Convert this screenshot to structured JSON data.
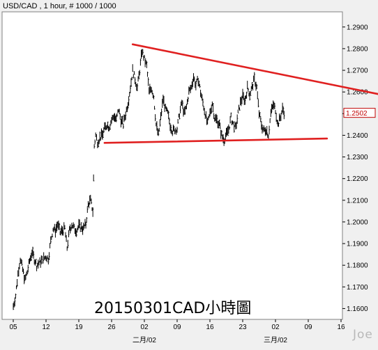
{
  "header": {
    "title": "USD/CAD , 1 hour, # 1000 / 1000"
  },
  "annotation": "20150301CAD小時圖",
  "watermark": "Joe",
  "colors": {
    "background": "#f0f0f0",
    "plot": "#ffffff",
    "price": "#000000",
    "trendline": "#e02020",
    "last_price_border": "#c00000"
  },
  "chart_data": {
    "type": "line",
    "style": "hlc-bars",
    "symbol": "USD/CAD",
    "timeframe": "1 hour",
    "yrange": [
      1.155,
      1.297
    ],
    "xrange_days": [
      -3,
      47
    ],
    "y_ticks": [
      "1.2900",
      "1.2800",
      "1.2700",
      "1.2600",
      "1.2500",
      "1.2400",
      "1.2300",
      "1.2200",
      "1.2100",
      "1.2000",
      "1.1900",
      "1.1800",
      "1.1700",
      "1.1600"
    ],
    "y_tick_values": [
      1.29,
      1.28,
      1.27,
      1.26,
      1.25,
      1.24,
      1.23,
      1.22,
      1.21,
      1.2,
      1.19,
      1.18,
      1.17,
      1.16
    ],
    "x_ticks": [
      {
        "label": "05",
        "day": 0
      },
      {
        "label": "12",
        "day": 7
      },
      {
        "label": "19",
        "day": 14
      },
      {
        "label": "26",
        "day": 21
      },
      {
        "label": "02",
        "day": 28
      },
      {
        "label": "09",
        "day": 35
      },
      {
        "label": "16",
        "day": 42
      },
      {
        "label": "23",
        "day": 49
      },
      {
        "label": "02",
        "day": 56
      },
      {
        "label": "09",
        "day": 63
      },
      {
        "label": "16",
        "day": 70
      }
    ],
    "month_labels": [
      {
        "label": "二月/02",
        "day": 28
      },
      {
        "label": "三月/02",
        "day": 56
      }
    ],
    "last_price": 1.2502,
    "last_price_label": "1.2502",
    "series": [
      {
        "values": [
          {
            "day": 0.0,
            "price": 1.161
          },
          {
            "day": 0.5,
            "price": 1.166
          },
          {
            "day": 1.0,
            "price": 1.176
          },
          {
            "day": 1.5,
            "price": 1.183
          },
          {
            "day": 2.0,
            "price": 1.178
          },
          {
            "day": 2.5,
            "price": 1.173
          },
          {
            "day": 3.0,
            "price": 1.177
          },
          {
            "day": 3.5,
            "price": 1.182
          },
          {
            "day": 4.0,
            "price": 1.186
          },
          {
            "day": 4.5,
            "price": 1.183
          },
          {
            "day": 5.0,
            "price": 1.18
          },
          {
            "day": 6.0,
            "price": 1.182
          },
          {
            "day": 7.0,
            "price": 1.184
          },
          {
            "day": 7.5,
            "price": 1.183
          },
          {
            "day": 8.0,
            "price": 1.191
          },
          {
            "day": 8.5,
            "price": 1.197
          },
          {
            "day": 9.0,
            "price": 1.196
          },
          {
            "day": 9.5,
            "price": 1.199
          },
          {
            "day": 10.0,
            "price": 1.195
          },
          {
            "day": 11.0,
            "price": 1.197
          },
          {
            "day": 11.5,
            "price": 1.188
          },
          {
            "day": 12.0,
            "price": 1.196
          },
          {
            "day": 12.5,
            "price": 1.199
          },
          {
            "day": 13.0,
            "price": 1.197
          },
          {
            "day": 13.5,
            "price": 1.196
          },
          {
            "day": 14.0,
            "price": 1.198
          },
          {
            "day": 15.0,
            "price": 1.197
          },
          {
            "day": 15.5,
            "price": 1.199
          },
          {
            "day": 16.0,
            "price": 1.208
          },
          {
            "day": 16.5,
            "price": 1.21
          },
          {
            "day": 17.0,
            "price": 1.205
          },
          {
            "day": 17.3,
            "price": 1.235
          },
          {
            "day": 17.6,
            "price": 1.24
          },
          {
            "day": 18.0,
            "price": 1.237
          },
          {
            "day": 18.5,
            "price": 1.239
          },
          {
            "day": 19.0,
            "price": 1.24
          },
          {
            "day": 19.5,
            "price": 1.243
          },
          {
            "day": 20.0,
            "price": 1.245
          },
          {
            "day": 20.5,
            "price": 1.244
          },
          {
            "day": 21.0,
            "price": 1.247
          },
          {
            "day": 21.5,
            "price": 1.249
          },
          {
            "day": 22.0,
            "price": 1.247
          },
          {
            "day": 22.5,
            "price": 1.252
          },
          {
            "day": 23.0,
            "price": 1.247
          },
          {
            "day": 23.5,
            "price": 1.245
          },
          {
            "day": 24.0,
            "price": 1.25
          },
          {
            "day": 24.5,
            "price": 1.255
          },
          {
            "day": 25.0,
            "price": 1.262
          },
          {
            "day": 25.5,
            "price": 1.27
          },
          {
            "day": 26.0,
            "price": 1.266
          },
          {
            "day": 26.5,
            "price": 1.262
          },
          {
            "day": 27.0,
            "price": 1.27
          },
          {
            "day": 27.5,
            "price": 1.279
          },
          {
            "day": 28.0,
            "price": 1.275
          },
          {
            "day": 28.5,
            "price": 1.272
          },
          {
            "day": 29.0,
            "price": 1.26
          },
          {
            "day": 29.5,
            "price": 1.262
          },
          {
            "day": 30.0,
            "price": 1.258
          },
          {
            "day": 30.5,
            "price": 1.245
          },
          {
            "day": 31.0,
            "price": 1.24
          },
          {
            "day": 31.5,
            "price": 1.248
          },
          {
            "day": 32.0,
            "price": 1.257
          },
          {
            "day": 32.5,
            "price": 1.252
          },
          {
            "day": 33.0,
            "price": 1.25
          },
          {
            "day": 33.5,
            "price": 1.245
          },
          {
            "day": 34.0,
            "price": 1.242
          },
          {
            "day": 35.0,
            "price": 1.243
          },
          {
            "day": 35.5,
            "price": 1.25
          },
          {
            "day": 36.0,
            "price": 1.255
          },
          {
            "day": 36.5,
            "price": 1.25
          },
          {
            "day": 37.0,
            "price": 1.253
          },
          {
            "day": 37.5,
            "price": 1.26
          },
          {
            "day": 38.0,
            "price": 1.262
          },
          {
            "day": 38.5,
            "price": 1.267
          },
          {
            "day": 39.0,
            "price": 1.263
          },
          {
            "day": 39.5,
            "price": 1.266
          },
          {
            "day": 40.0,
            "price": 1.26
          },
          {
            "day": 40.5,
            "price": 1.255
          },
          {
            "day": 41.0,
            "price": 1.25
          },
          {
            "day": 41.5,
            "price": 1.245
          },
          {
            "day": 42.0,
            "price": 1.25
          },
          {
            "day": 42.5,
            "price": 1.255
          },
          {
            "day": 43.0,
            "price": 1.248
          },
          {
            "day": 43.5,
            "price": 1.247
          },
          {
            "day": 44.0,
            "price": 1.245
          },
          {
            "day": 44.5,
            "price": 1.24
          },
          {
            "day": 45.0,
            "price": 1.238
          },
          {
            "day": 45.5,
            "price": 1.24
          },
          {
            "day": 46.0,
            "price": 1.243
          },
          {
            "day": 46.5,
            "price": 1.248
          },
          {
            "day": 47.0,
            "price": 1.245
          },
          {
            "day": 47.5,
            "price": 1.243
          },
          {
            "day": 48.0,
            "price": 1.25
          },
          {
            "day": 48.5,
            "price": 1.255
          },
          {
            "day": 49.0,
            "price": 1.258
          },
          {
            "day": 49.5,
            "price": 1.256
          },
          {
            "day": 50.0,
            "price": 1.262
          },
          {
            "day": 50.5,
            "price": 1.259
          },
          {
            "day": 51.0,
            "price": 1.262
          },
          {
            "day": 51.5,
            "price": 1.266
          },
          {
            "day": 52.0,
            "price": 1.262
          },
          {
            "day": 52.5,
            "price": 1.25
          },
          {
            "day": 53.0,
            "price": 1.245
          },
          {
            "day": 53.5,
            "price": 1.242
          },
          {
            "day": 54.0,
            "price": 1.243
          },
          {
            "day": 54.5,
            "price": 1.24
          },
          {
            "day": 55.0,
            "price": 1.25
          },
          {
            "day": 55.5,
            "price": 1.254
          },
          {
            "day": 56.0,
            "price": 1.252
          },
          {
            "day": 56.5,
            "price": 1.245
          },
          {
            "day": 57.0,
            "price": 1.248
          },
          {
            "day": 57.5,
            "price": 1.252
          },
          {
            "day": 58.0,
            "price": 1.2502
          }
        ]
      }
    ],
    "trendlines": [
      {
        "from": {
          "day": 25.5,
          "price": 1.282
        },
        "to": {
          "day": 78.0,
          "price": 1.259
        }
      },
      {
        "from": {
          "day": 19.5,
          "price": 1.2365
        },
        "to": {
          "day": 67.0,
          "price": 1.2385
        }
      }
    ]
  }
}
